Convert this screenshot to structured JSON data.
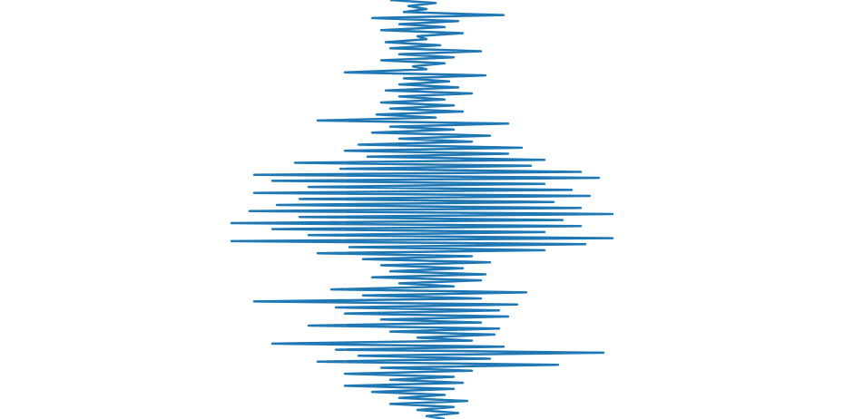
{
  "chart_data": {
    "type": "line",
    "orientation": "vertical",
    "series": [
      {
        "color": "#1f77b4",
        "values": [
          430,
          480,
          450,
          470,
          445,
          555,
          410,
          505,
          440,
          490,
          420,
          510,
          460,
          470,
          425,
          485,
          430,
          530,
          440,
          500,
          420,
          490,
          455,
          470,
          380,
          535,
          445,
          495,
          440,
          505,
          425,
          520,
          440,
          490,
          420,
          500,
          430,
          510,
          415,
          480,
          350,
          560,
          430,
          500,
          410,
          540,
          440,
          520,
          395,
          575,
          380,
          560,
          405,
          600,
          325,
          585,
          375,
          640,
          280,
          660,
          300,
          600,
          340,
          630,
          280,
          650,
          330,
          610,
          305,
          640,
          275,
          675,
          330,
          620,
          255,
          640,
          300,
          600,
          340,
          675,
          255,
          645,
          385,
          600,
          350,
          520,
          400,
          540,
          420,
          510,
          430,
          535,
          410,
          530,
          440,
          500,
          365,
          580,
          400,
          530,
          280,
          570,
          370,
          550,
          380,
          560,
          420,
          530,
          340,
          550,
          430,
          545,
          460,
          520,
          300,
          555,
          370,
          665,
          395,
          540,
          350,
          615,
          420,
          520,
          380,
          500,
          430,
          510,
          380,
          500,
          410,
          490,
          440,
          515,
          430,
          500,
          460,
          505,
          470,
          490
        ]
      }
    ],
    "xlim": [
      0,
      930
    ]
  }
}
